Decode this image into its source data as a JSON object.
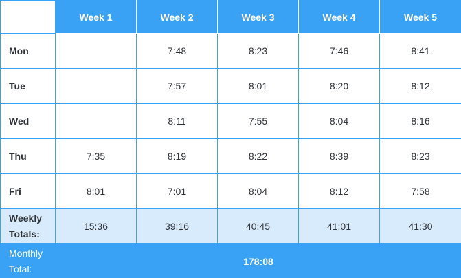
{
  "header": {
    "weeks": [
      "Week 1",
      "Week 2",
      "Week 3",
      "Week 4",
      "Week 5"
    ]
  },
  "rows": [
    {
      "label": "Mon",
      "values": [
        "",
        "7:48",
        "8:23",
        "7:46",
        "8:41"
      ]
    },
    {
      "label": "Tue",
      "values": [
        "",
        "7:57",
        "8:01",
        "8:20",
        "8:12"
      ]
    },
    {
      "label": "Wed",
      "values": [
        "",
        "8:11",
        "7:55",
        "8:04",
        "8:16"
      ]
    },
    {
      "label": "Thu",
      "values": [
        "7:35",
        "8:19",
        "8:22",
        "8:39",
        "8:23"
      ]
    },
    {
      "label": "Fri",
      "values": [
        "8:01",
        "7:01",
        "8:04",
        "8:12",
        "7:58"
      ]
    }
  ],
  "weekly": {
    "label_line1": "Weekly",
    "label_line2": "Totals:",
    "values": [
      "15:36",
      "39:16",
      "40:45",
      "41:01",
      "41:30"
    ]
  },
  "monthly": {
    "label_line1": "Monthly",
    "label_line2": "Total:",
    "value": "178:08"
  },
  "colors": {
    "accent": "#3aa2f5",
    "totals_row_bg": "#d8ebfc",
    "text": "#2f3338"
  }
}
